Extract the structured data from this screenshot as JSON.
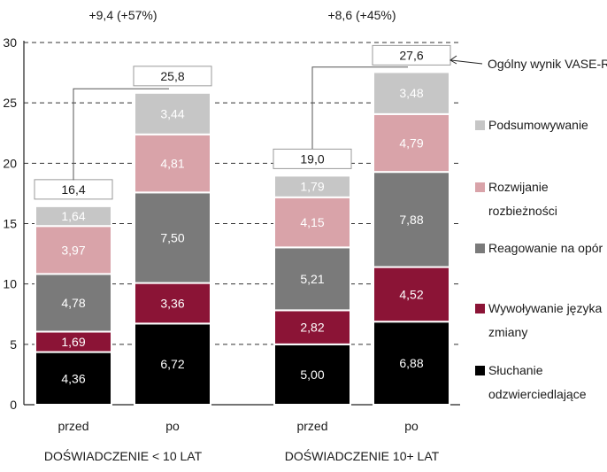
{
  "chart_data": {
    "type": "bar",
    "stacked": true,
    "ylim": [
      0,
      30
    ],
    "yticks": [
      0,
      5,
      10,
      15,
      20,
      25,
      30
    ],
    "grid": "dashed horizontal",
    "legend_position": "right",
    "groups": [
      {
        "label": "DOŚWIADCZENIE < 10 LAT",
        "change": "+9,4   (+57%)"
      },
      {
        "label": "DOŚWIADCZENIE 10+ LAT",
        "change": "+8,6   (+45%)"
      }
    ],
    "bars": [
      {
        "category": "przed",
        "group": 0,
        "total": 16.4,
        "total_label": "16,4",
        "values": [
          4.36,
          1.69,
          4.78,
          3.97,
          1.64
        ],
        "labels": [
          "4,36",
          "1,69",
          "4,78",
          "3,97",
          "1,64"
        ]
      },
      {
        "category": "po",
        "group": 0,
        "total": 25.8,
        "total_label": "25,8",
        "values": [
          6.72,
          3.36,
          7.5,
          4.81,
          3.44
        ],
        "labels": [
          "6,72",
          "3,36",
          "7,50",
          "4,81",
          "3,44"
        ]
      },
      {
        "category": "przed",
        "group": 1,
        "total": 19.0,
        "total_label": "19,0",
        "values": [
          5.0,
          2.82,
          5.21,
          4.15,
          1.79
        ],
        "labels": [
          "5,00",
          "2,82",
          "5,21",
          "4,15",
          "1,79"
        ]
      },
      {
        "category": "po",
        "group": 1,
        "total": 27.6,
        "total_label": "27,6",
        "values": [
          6.88,
          4.52,
          7.88,
          4.79,
          3.48
        ],
        "labels": [
          "6,88",
          "4,52",
          "7,88",
          "4,79",
          "3,48"
        ]
      }
    ],
    "series": [
      {
        "name_lines": [
          "Słuchanie",
          "odzwierciedlające"
        ],
        "color": "#000000",
        "text_color": "#ffffff"
      },
      {
        "name_lines": [
          "Wywoływanie języka",
          "zmiany"
        ],
        "color": "#8b1436",
        "text_color": "#ffffff"
      },
      {
        "name_lines": [
          "Reagowanie na opór"
        ],
        "color": "#7a7a7a",
        "text_color": "#ffffff"
      },
      {
        "name_lines": [
          "Rozwijanie",
          "rozbieżności"
        ],
        "color": "#d9a3a9",
        "text_color": "#ffffff"
      },
      {
        "name_lines": [
          "Podsumowywanie"
        ],
        "color": "#c6c6c6",
        "text_color": "#ffffff"
      }
    ],
    "annotation": "Ogólny wynik VASE-R"
  }
}
